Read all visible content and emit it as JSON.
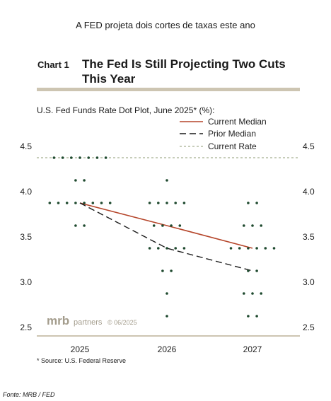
{
  "header": {
    "caption": "A FED projeta dois cortes de taxas este ano",
    "chart_number": "Chart 1",
    "chart_title": "The Fed Is Still Projecting Two Cuts This Year",
    "subtitle": "U.S. Fed Funds Rate Dot Plot, June 2025* (%):"
  },
  "watermark": {
    "brand": "mrb",
    "word": "partners",
    "date": "© 06/2025"
  },
  "footer": {
    "source_note": "*  Source: U.S. Federal Reserve",
    "fonte": "Fonte: MRB / FED"
  },
  "chart_data": {
    "type": "scatter",
    "ylim": [
      2.5,
      4.5
    ],
    "yticks": [
      "4.5",
      "4.0",
      "3.5",
      "3.0",
      "2.5"
    ],
    "categories": [
      "2025",
      "2026",
      "2027"
    ],
    "dots": [
      {
        "year": "2025",
        "levels": [
          {
            "rate": 4.375,
            "count": 7
          },
          {
            "rate": 4.125,
            "count": 2
          },
          {
            "rate": 3.875,
            "count": 8
          },
          {
            "rate": 3.625,
            "count": 2
          }
        ]
      },
      {
        "year": "2026",
        "levels": [
          {
            "rate": 4.125,
            "count": 1
          },
          {
            "rate": 3.875,
            "count": 5
          },
          {
            "rate": 3.625,
            "count": 4
          },
          {
            "rate": 3.375,
            "count": 5
          },
          {
            "rate": 3.125,
            "count": 2
          },
          {
            "rate": 2.875,
            "count": 1
          },
          {
            "rate": 2.625,
            "count": 1
          }
        ]
      },
      {
        "year": "2027",
        "levels": [
          {
            "rate": 3.875,
            "count": 2
          },
          {
            "rate": 3.625,
            "count": 3
          },
          {
            "rate": 3.375,
            "count": 6
          },
          {
            "rate": 3.125,
            "count": 2
          },
          {
            "rate": 2.875,
            "count": 3
          },
          {
            "rate": 2.625,
            "count": 2
          }
        ]
      }
    ],
    "series": [
      {
        "name": "Current Median",
        "values": [
          3.875,
          3.625,
          3.375
        ],
        "color": "#b5452a",
        "style": "solid"
      },
      {
        "name": "Prior Median",
        "values": [
          3.875,
          3.375,
          3.125
        ],
        "color": "#1a1a1a",
        "style": "dashed"
      },
      {
        "name": "Current Rate",
        "values": [
          4.375
        ],
        "color": "#8f9b76",
        "style": "dashed"
      }
    ],
    "dot_color": "#1f4a2f",
    "grid": false,
    "legend_placement": "top-right"
  }
}
